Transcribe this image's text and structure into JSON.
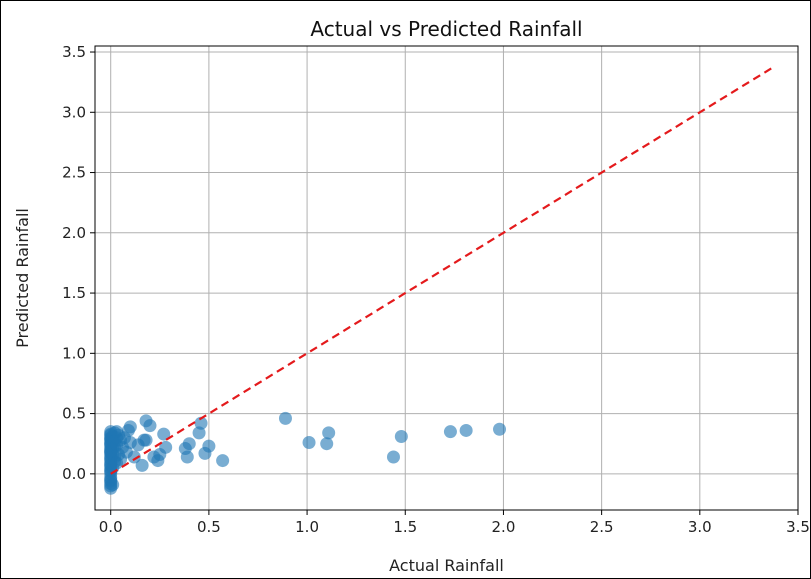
{
  "chart_data": {
    "type": "scatter",
    "title": "Actual vs Predicted Rainfall",
    "xlabel": "Actual Rainfall",
    "ylabel": "Predicted Rainfall",
    "xlim": [
      -0.08,
      3.5
    ],
    "ylim": [
      -0.3,
      3.55
    ],
    "grid": true,
    "xticks": [
      0.0,
      0.5,
      1.0,
      1.5,
      2.0,
      2.5,
      3.0,
      3.5
    ],
    "xtick_labels": [
      "0.0",
      "0.5",
      "1.0",
      "1.5",
      "2.0",
      "2.5",
      "3.0",
      "3.5"
    ],
    "yticks": [
      0.0,
      0.5,
      1.0,
      1.5,
      2.0,
      2.5,
      3.0,
      3.5
    ],
    "ytick_labels": [
      "0.0",
      "0.5",
      "1.0",
      "1.5",
      "2.0",
      "2.5",
      "3.0",
      "3.5"
    ],
    "colors": {
      "points": "#1f77b4",
      "reference_line": "#e41a1c",
      "grid": "#b0b0b0"
    },
    "reference_line": {
      "style": "dashed",
      "x": [
        0.0,
        3.37
      ],
      "y": [
        0.0,
        3.37
      ]
    },
    "series": [
      {
        "x": [
          0.0,
          0.0,
          0.0,
          0.0,
          0.0,
          0.0,
          0.0,
          0.0,
          0.0,
          0.0,
          0.0,
          0.0,
          0.0,
          0.0,
          0.0,
          0.0,
          0.0,
          0.0,
          0.0,
          0.0,
          0.0,
          0.0,
          0.0,
          0.0,
          0.0,
          0.0,
          0.0,
          0.0,
          0.0,
          0.0,
          0.01,
          0.01,
          0.01,
          0.01,
          0.01,
          0.01,
          0.02,
          0.02,
          0.02,
          0.02,
          0.02,
          0.03,
          0.03,
          0.03,
          0.03,
          0.04,
          0.04,
          0.05,
          0.05,
          0.06,
          0.07,
          0.08,
          0.09,
          0.1,
          0.1,
          0.12,
          0.14,
          0.16,
          0.17,
          0.18,
          0.18,
          0.2,
          0.22,
          0.24,
          0.25,
          0.27,
          0.28,
          0.38,
          0.39,
          0.4,
          0.45,
          0.46,
          0.48,
          0.5,
          0.57,
          0.89,
          1.01,
          1.1,
          1.11,
          1.44,
          1.48,
          1.73,
          1.81,
          1.98
        ],
        "y": [
          -0.12,
          -0.1,
          -0.08,
          -0.05,
          -0.03,
          0.0,
          0.02,
          0.05,
          0.08,
          0.1,
          0.12,
          0.15,
          0.18,
          0.2,
          0.22,
          0.25,
          0.28,
          0.3,
          0.33,
          0.35,
          -0.06,
          0.03,
          0.07,
          0.13,
          0.17,
          0.24,
          0.29,
          0.32,
          0.26,
          0.19,
          -0.09,
          0.05,
          0.16,
          0.27,
          0.31,
          0.21,
          0.1,
          0.22,
          0.34,
          0.14,
          0.27,
          0.09,
          0.24,
          0.3,
          0.35,
          0.16,
          0.32,
          0.12,
          0.28,
          0.22,
          0.3,
          0.18,
          0.36,
          0.26,
          0.39,
          0.14,
          0.24,
          0.07,
          0.28,
          0.44,
          0.28,
          0.4,
          0.14,
          0.11,
          0.16,
          0.33,
          0.22,
          0.21,
          0.14,
          0.25,
          0.34,
          0.42,
          0.17,
          0.23,
          0.11,
          0.46,
          0.26,
          0.25,
          0.34,
          0.14,
          0.31,
          0.35,
          0.36,
          0.37
        ]
      }
    ]
  }
}
